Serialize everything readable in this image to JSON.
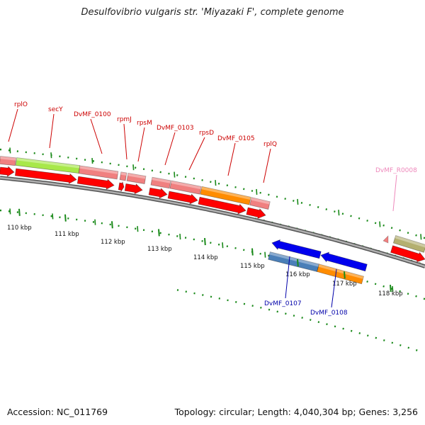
{
  "title": "Desulfovibrio vulgaris str. 'Miyazaki F', complete genome",
  "accession_text": "Accession: NC_011769",
  "summary_text": "Topology: circular; Length: 4,040,304 bp; Genes: 3,256",
  "colors": {
    "background": "#ffffff",
    "backbone": "#888888",
    "feature_label": "#cc0000",
    "feature_label_blue": "#0000aa",
    "feature_label_pink": "#ee88bb",
    "gene_red": "#ff0000",
    "gene_blue": "#0000ee",
    "cds_pink": "#f08080",
    "cds_lime": "#a8e84a",
    "cds_orange": "#ff8c00",
    "cds_steel": "#4a7fb8",
    "cds_olive": "#b4b070",
    "tick_green": "#1a8a1a"
  },
  "scale": {
    "unit": "kbp",
    "labels": [
      "110 kbp",
      "111 kbp",
      "112 kbp",
      "113 kbp",
      "114 kbp",
      "115 kbp",
      "116 kbp",
      "117 kbp",
      "118 kbp"
    ]
  },
  "top_labels": [
    {
      "text": "rplO",
      "color": "#cc0000"
    },
    {
      "text": "secY",
      "color": "#cc0000"
    },
    {
      "text": "DvMF_0100",
      "color": "#cc0000"
    },
    {
      "text": "rpmJ",
      "color": "#cc0000"
    },
    {
      "text": "rpsM",
      "color": "#cc0000"
    },
    {
      "text": "DvMF_0103",
      "color": "#cc0000"
    },
    {
      "text": "rpsD",
      "color": "#cc0000"
    },
    {
      "text": "DvMF_0105",
      "color": "#cc0000"
    },
    {
      "text": "rplQ",
      "color": "#cc0000"
    },
    {
      "text": "DvMF_R0008",
      "color": "#ee88bb"
    }
  ],
  "bottom_labels": [
    {
      "text": "DvMF_0107",
      "color": "#0000aa"
    },
    {
      "text": "DvMF_0108",
      "color": "#0000aa"
    }
  ]
}
